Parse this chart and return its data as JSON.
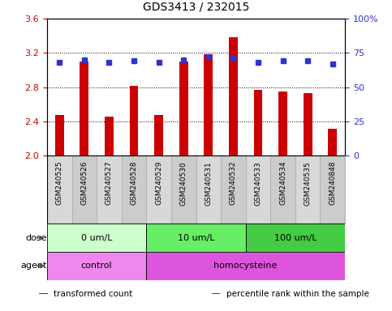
{
  "title": "GDS3413 / 232015",
  "samples": [
    "GSM240525",
    "GSM240526",
    "GSM240527",
    "GSM240528",
    "GSM240529",
    "GSM240530",
    "GSM240531",
    "GSM240532",
    "GSM240533",
    "GSM240534",
    "GSM240535",
    "GSM240848"
  ],
  "red_values": [
    2.47,
    3.1,
    2.45,
    2.81,
    2.47,
    3.1,
    3.18,
    3.38,
    2.77,
    2.75,
    2.73,
    2.31
  ],
  "blue_values": [
    68,
    70,
    68,
    69,
    68,
    70,
    72,
    71,
    68,
    69,
    69,
    67
  ],
  "ylim_left": [
    2.0,
    3.6
  ],
  "ylim_right": [
    0,
    100
  ],
  "yticks_left": [
    2.0,
    2.4,
    2.8,
    3.2,
    3.6
  ],
  "yticks_right": [
    0,
    25,
    50,
    75,
    100
  ],
  "ytick_labels_right": [
    "0",
    "25",
    "50",
    "75",
    "100%"
  ],
  "bar_color": "#cc0000",
  "dot_color": "#3333cc",
  "bar_bottom": 2.0,
  "bar_width": 0.35,
  "dot_size": 5,
  "dose_groups": [
    {
      "label": "0 um/L",
      "start": 0,
      "end": 4,
      "color": "#ccffcc"
    },
    {
      "label": "10 um/L",
      "start": 4,
      "end": 8,
      "color": "#66ee66"
    },
    {
      "label": "100 um/L",
      "start": 8,
      "end": 12,
      "color": "#44cc44"
    }
  ],
  "agent_groups": [
    {
      "label": "control",
      "start": 0,
      "end": 4,
      "color": "#ee88ee"
    },
    {
      "label": "homocysteine",
      "start": 4,
      "end": 12,
      "color": "#dd55dd"
    }
  ],
  "legend_items": [
    {
      "color": "#cc0000",
      "label": "transformed count"
    },
    {
      "color": "#3333cc",
      "label": "percentile rank within the sample"
    }
  ],
  "tick_color_left": "#cc0000",
  "tick_color_right": "#3333cc",
  "grid_linestyle": ":",
  "grid_linewidth": 0.7,
  "sample_box_color": "#d4d4d4",
  "sample_box_edge": "#aaaaaa"
}
